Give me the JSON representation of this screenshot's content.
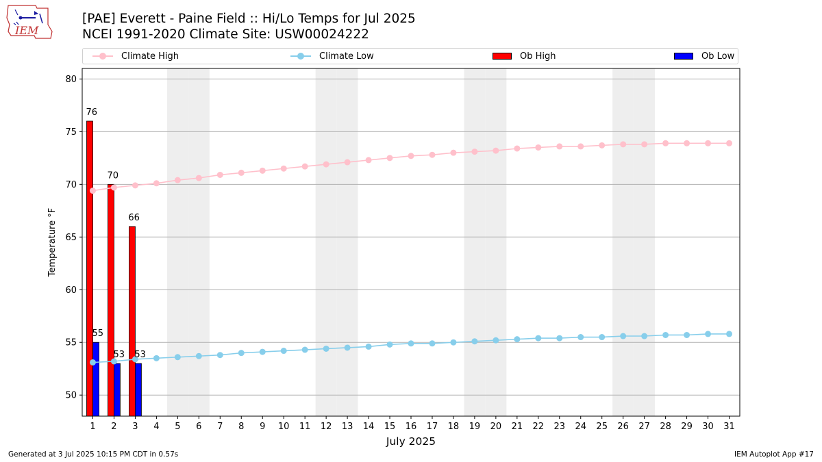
{
  "header": {
    "logo_text": "IEM",
    "title_line1": "[PAE] Everett - Paine Field :: Hi/Lo Temps for Jul 2025",
    "title_line2": "NCEI 1991-2020 Climate Site: USW00024222"
  },
  "footer": {
    "left": "Generated at 3 Jul 2025 10:15 PM CDT in 0.57s",
    "right": "IEM Autoplot App #17"
  },
  "colors": {
    "climate_high": "#ffc0cb",
    "climate_low": "#87ceeb",
    "ob_high": "#ff0000",
    "ob_low": "#0000ff",
    "weekend_band": "#eeeeee",
    "grid": "#b0b0b0"
  },
  "chart_data": {
    "type": "bar",
    "title": "[PAE] Everett - Paine Field :: Hi/Lo Temps for Jul 2025",
    "subtitle": "NCEI 1991-2020 Climate Site: USW00024222",
    "xlabel": "July 2025",
    "ylabel": "Temperature °F",
    "ylim": [
      48,
      81
    ],
    "xlim": [
      0.5,
      31.5
    ],
    "yticks": [
      50,
      55,
      60,
      65,
      70,
      75,
      80
    ],
    "x": [
      1,
      2,
      3,
      4,
      5,
      6,
      7,
      8,
      9,
      10,
      11,
      12,
      13,
      14,
      15,
      16,
      17,
      18,
      19,
      20,
      21,
      22,
      23,
      24,
      25,
      26,
      27,
      28,
      29,
      30,
      31
    ],
    "grid": "horizontal",
    "legend_position": "top",
    "weekend_days": [
      5,
      6,
      12,
      13,
      19,
      20,
      26,
      27
    ],
    "legend": [
      "Climate High",
      "Climate Low",
      "Ob High",
      "Ob Low"
    ],
    "series": [
      {
        "name": "Climate High",
        "kind": "line",
        "values": [
          69.4,
          69.7,
          69.9,
          70.1,
          70.4,
          70.6,
          70.9,
          71.1,
          71.3,
          71.5,
          71.7,
          71.9,
          72.1,
          72.3,
          72.5,
          72.7,
          72.8,
          73.0,
          73.1,
          73.2,
          73.4,
          73.5,
          73.6,
          73.6,
          73.7,
          73.8,
          73.8,
          73.9,
          73.9,
          73.9,
          73.9
        ]
      },
      {
        "name": "Climate Low",
        "kind": "line",
        "values": [
          53.1,
          53.2,
          53.4,
          53.5,
          53.6,
          53.7,
          53.8,
          54.0,
          54.1,
          54.2,
          54.3,
          54.4,
          54.5,
          54.6,
          54.8,
          54.9,
          54.9,
          55.0,
          55.1,
          55.2,
          55.3,
          55.4,
          55.4,
          55.5,
          55.5,
          55.6,
          55.6,
          55.7,
          55.7,
          55.8,
          55.8
        ]
      },
      {
        "name": "Ob High",
        "kind": "bar",
        "x": [
          1,
          2,
          3
        ],
        "values": [
          76,
          70,
          66
        ]
      },
      {
        "name": "Ob Low",
        "kind": "bar",
        "x": [
          1,
          2,
          3
        ],
        "values": [
          55,
          53,
          53
        ]
      }
    ]
  }
}
